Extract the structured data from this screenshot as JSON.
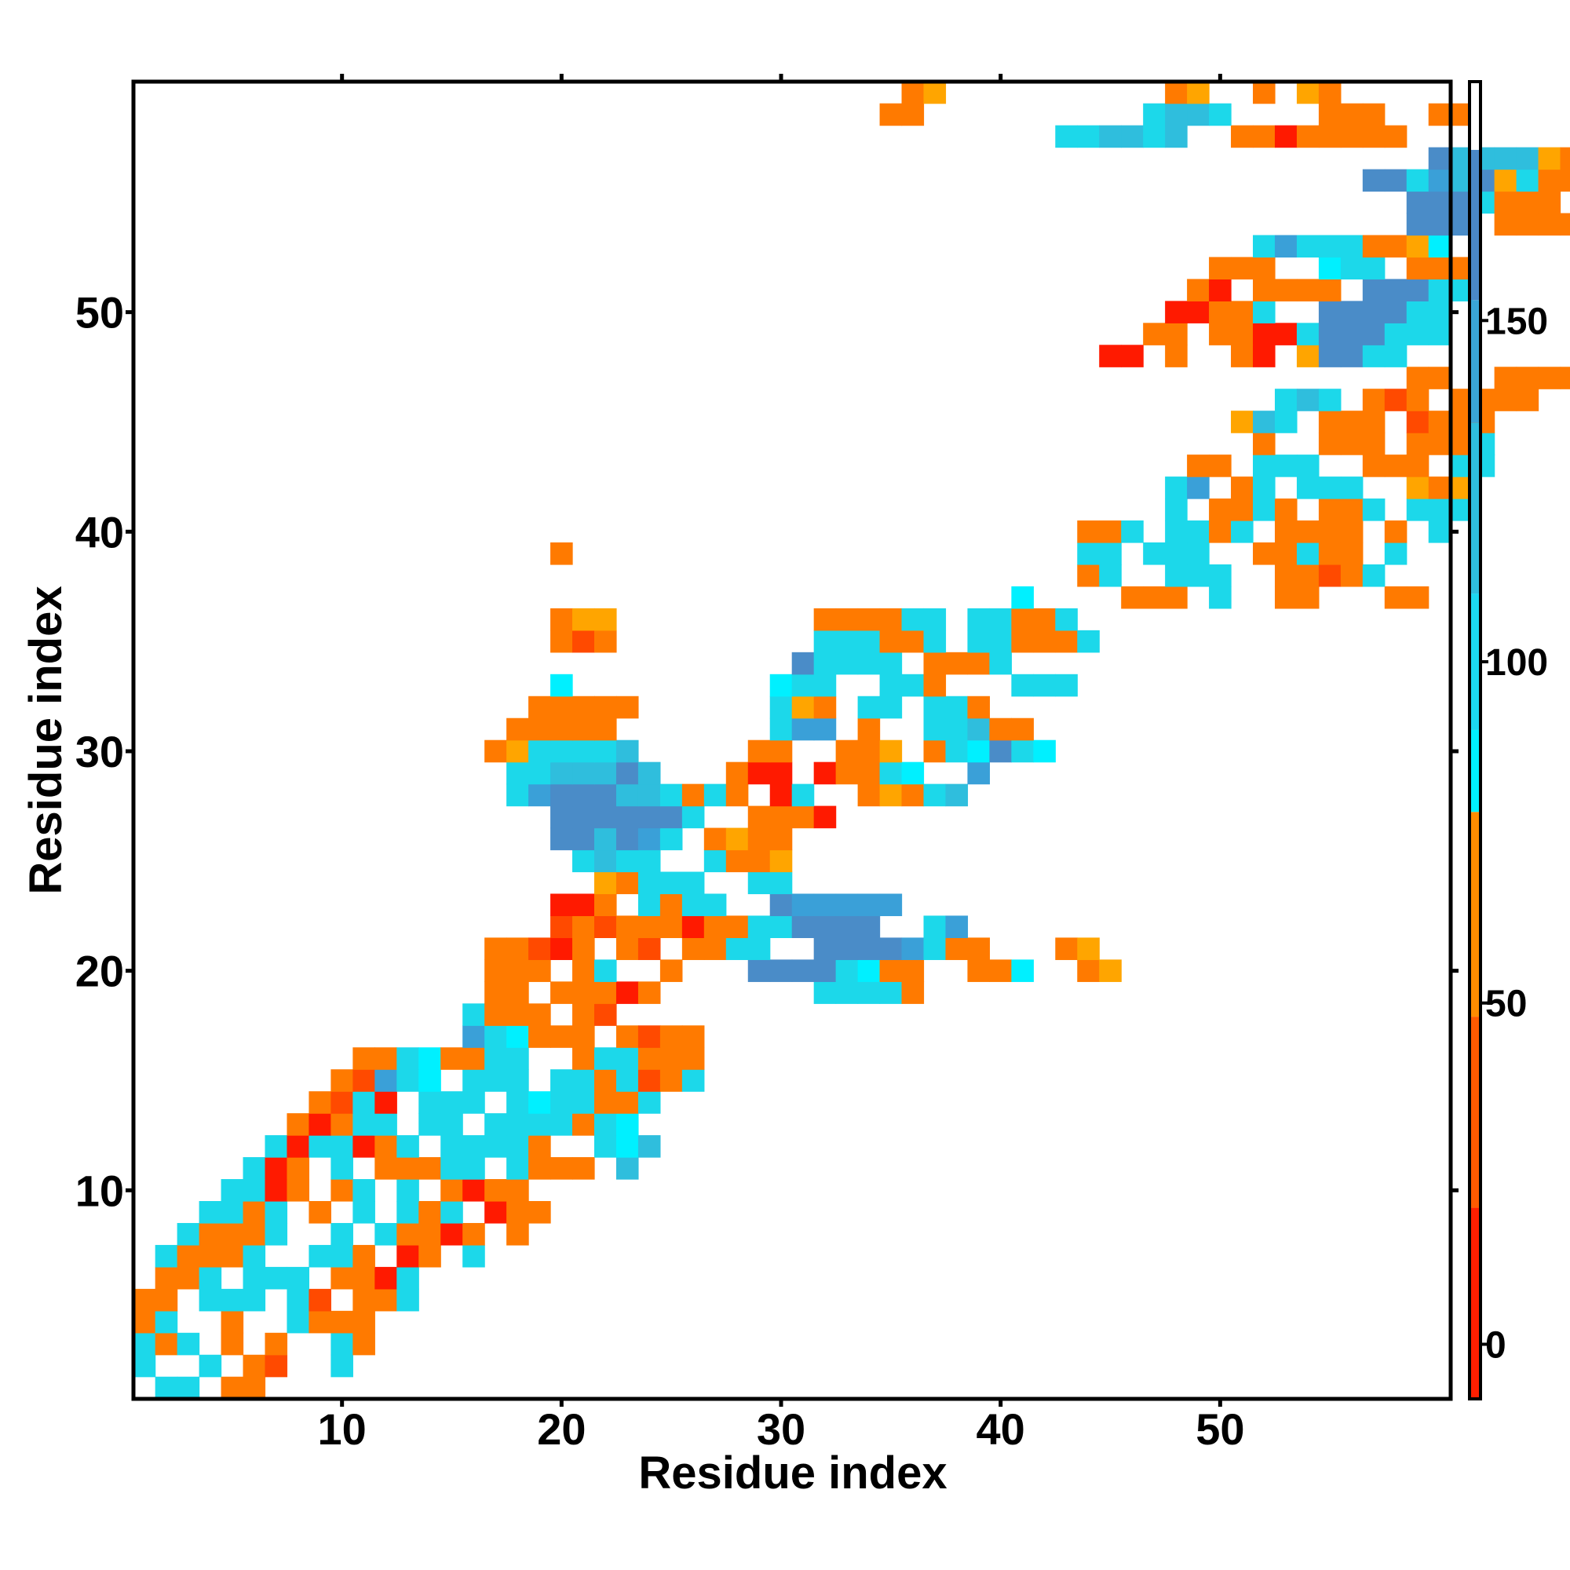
{
  "chart_data": {
    "type": "heatmap",
    "xlabel": "Residue index",
    "ylabel": "Residue index",
    "xlim": [
      0.5,
      60.5
    ],
    "ylim": [
      0.5,
      60.5
    ],
    "xticks": [
      10,
      20,
      30,
      40,
      50
    ],
    "yticks": [
      10,
      20,
      30,
      40,
      50
    ],
    "colorbar": {
      "range": [
        -8,
        185
      ],
      "ticks": [
        0,
        50,
        100,
        150
      ],
      "bands": [
        {
          "from": -8,
          "to": 20,
          "color": "#ff1f00"
        },
        {
          "from": 20,
          "to": 48,
          "color": "#ff5a00"
        },
        {
          "from": 48,
          "to": 78,
          "color": "#ff8c00"
        },
        {
          "from": 78,
          "to": 90,
          "color": "#00f0ff"
        },
        {
          "from": 90,
          "to": 110,
          "color": "#1cd8f0"
        },
        {
          "from": 110,
          "to": 135,
          "color": "#2fbedd"
        },
        {
          "from": 135,
          "to": 153,
          "color": "#3aa5d6"
        },
        {
          "from": 153,
          "to": 175,
          "color": "#4a88c8"
        },
        {
          "from": 175,
          "to": 185,
          "color": "#ffffff"
        }
      ]
    },
    "palette": {
      "R": "#ff1a00",
      "r": "#ff4a00",
      "o": "#ff7a00",
      "y": "#ffa500",
      "c": "#00f0ff",
      "t": "#1cd8ea",
      "m": "#2fbedd",
      "b": "#3aa0d8",
      "d": "#4a8cc8"
    },
    "rows": {
      "1": ".tt.oo",
      "2": "t..t.or..t",
      "3": "tot.o.o..to",
      "4": "ot..o..tooo",
      "5": "oo.ttt.tr.oot",
      "6": ".oot.ttt.ooRt",
      "7": ".tooot..tto.Ro.t",
      "8": "..tooot..t.tooRo.o",
      "9": "...ttot.o.t.tot.Roo",
      "10": "....ttRo.ot.t.oRoo",
      "11": ".....tRo.t.ooott.tooo.m",
      "12": "......tRttRot.tttto..tcm",
      "13": ".......oRott.tt.ttttotc",
      "14": "........ortR.ttt.tcttoot",
      "15": ".........orbtc.ttt.ttotrot",
      "16": "..........ootcoott..ottooo",
      "17": "...............btcooo.oroo...........................",
      "18": "...............tooo.or..............................",
      "19": "................oo.oooRo.......tttto",
      "20": "................ooo.ot..o...ddddtcoo..ooc..oy",
      "21": "................oorRo.or.oott..ddddbtoo...oy",
      "22": "...................roroooRoottdddd..tb",
      "23": "...................RRo.tott..dbbbbb",
      "24": ".....................yottt..tt",
      "25": "....................tmtt..tooy",
      "26": "...................ddmdbt.oyoo",
      "27": "...................ddddddt..oooR",
      "28": ".................tbdddmmtoto.Rt..oyotm",
      "29": ".................ttmmmdm...oRR.Rootc..b",
      "30": "................oyttttm.....oo..ooy.otcdtc",
      "31": ".................ooooo.......tbb.o..ttmoo",
      "32": "..................ooooo......tyo.tt.tto",
      "33": "...................c.........ctt..tto...ttt",
      "34": "..............................dtttt.ooot",
      "35": "...................oro.........tttoot.ttooot",
      "36": "...................oyy.........oooott.ttoot",
      "37": "........................................c....ooo.t..oo...oo",
      "38": "...........................................ot..ttt..oorot",
      "39": "...................o.......................tt.ttt..ootoo.t",
      "40": "...........................................oot.ttot.oooo.o.t",
      "41": "...............................................t.ooto.oot.ttt",
      "42": "...............................................tb.ot.ttt..yoy",
      "43": "................................................oo.ttt..ooo.tt",
      "44": "...................................................o..ooo.ooot",
      "45": "..................................................ymt.ooo.rooo",
      "46": "....................................................tmt.oro.oooo",
      "47": "..........................................................oo..oooo",
      "48": "............................................RR.o..oR.yddtt",
      "49": "..............................................oo.ooRRtdddttt",
      "50": "...............................................RRoot..ddddtt",
      "51": "................................................oR.oooo.dddtt",
      "52": ".................................................ooo..ctt.ooo",
      "53": "...................................................tbtttooyc",
      "54": "..........................................................ddd.oooo",
      "55": "..........................................................dddtooo.R",
      "56": "........................................................ddtbmdytooRo",
      "57": "...........................................................dmmmmyoo.",
      "58": "..........................................ttmmtm..ooRooooo.",
      "59": "..................................oo..........tmmt....ooo..oo",
      "60": "...................................oy..........oy..o.yo"
    }
  }
}
